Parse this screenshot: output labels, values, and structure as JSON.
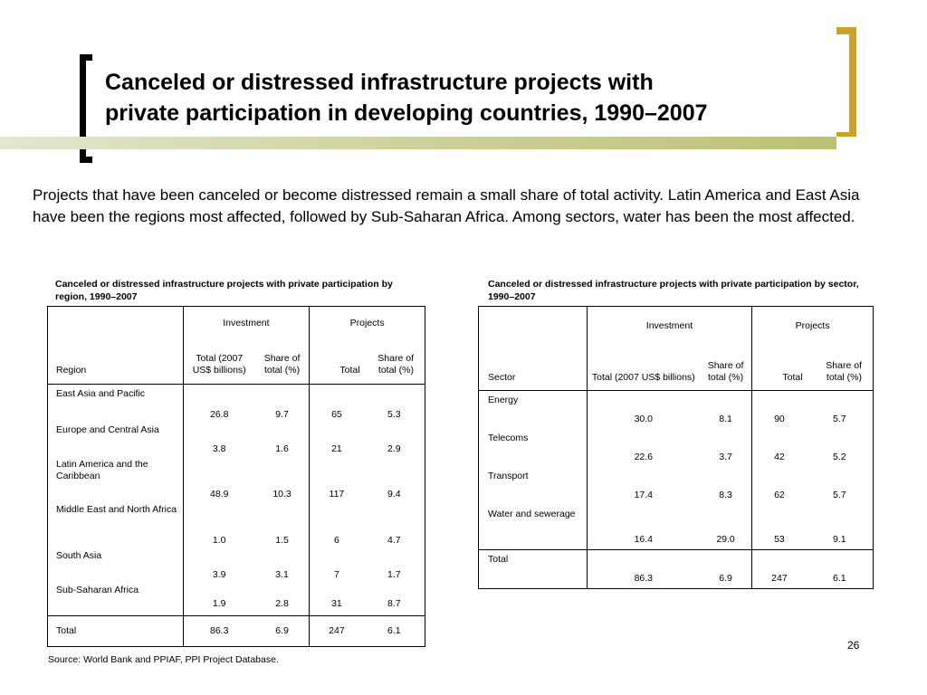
{
  "title_line1": "Canceled or distressed infrastructure projects with",
  "title_line2": "private participation in developing countries, 1990–2007",
  "intro": "Projects that have been canceled or become distressed remain a small share of total activity. Latin America and East Asia have been the regions most affected, followed by Sub-Saharan Africa. Among sectors, water has been the most affected.",
  "region_table": {
    "caption": "Canceled or distressed infrastructure projects with private participation by region, 1990–2007",
    "group_investment": "Investment",
    "group_projects": "Projects",
    "col_label": "Region",
    "col_inv_total": "Total (2007 US$ billions)",
    "col_inv_share": "Share of total (%)",
    "col_proj_total": "Total",
    "col_proj_share": "Share of total (%)",
    "rows": [
      {
        "name": "East Asia and Pacific",
        "inv_total": "26.8",
        "inv_share": "9.7",
        "proj_total": "65",
        "proj_share": "5.3"
      },
      {
        "name": "Europe and Central Asia",
        "inv_total": "3.8",
        "inv_share": "1.6",
        "proj_total": "21",
        "proj_share": "2.9"
      },
      {
        "name": "Latin America and the Caribbean",
        "inv_total": "48.9",
        "inv_share": "10.3",
        "proj_total": "117",
        "proj_share": "9.4"
      },
      {
        "name": "Middle East and North Africa",
        "inv_total": "1.0",
        "inv_share": "1.5",
        "proj_total": "6",
        "proj_share": "4.7"
      },
      {
        "name": "South Asia",
        "inv_total": "3.9",
        "inv_share": "3.1",
        "proj_total": "7",
        "proj_share": "1.7"
      },
      {
        "name": "Sub-Saharan Africa",
        "inv_total": "1.9",
        "inv_share": "2.8",
        "proj_total": "31",
        "proj_share": "8.7"
      }
    ],
    "total": {
      "name": "Total",
      "inv_total": "86.3",
      "inv_share": "6.9",
      "proj_total": "247",
      "proj_share": "6.1"
    }
  },
  "sector_table": {
    "caption": "Canceled or distressed infrastructure projects with private participation by sector, 1990–2007",
    "group_investment": "Investment",
    "group_projects": "Projects",
    "col_label": "Sector",
    "col_inv_total": "Total (2007 US$ billions)",
    "col_inv_share": "Share of total (%)",
    "col_proj_total": "Total",
    "col_proj_share": "Share of total (%)",
    "rows": [
      {
        "name": "Energy",
        "inv_total": "30.0",
        "inv_share": "8.1",
        "proj_total": "90",
        "proj_share": "5.7"
      },
      {
        "name": "Telecoms",
        "inv_total": "22.6",
        "inv_share": "3.7",
        "proj_total": "42",
        "proj_share": "5.2"
      },
      {
        "name": "Transport",
        "inv_total": "17.4",
        "inv_share": "8.3",
        "proj_total": "62",
        "proj_share": "5.7"
      },
      {
        "name": "Water and sewerage",
        "inv_total": "16.4",
        "inv_share": "29.0",
        "proj_total": "53",
        "proj_share": "9.1"
      }
    ],
    "total": {
      "name": "Total",
      "inv_total": "86.3",
      "inv_share": "6.9",
      "proj_total": "247",
      "proj_share": "6.1"
    }
  },
  "source": "Source: World Bank and PPIAF, PPI Project Database.",
  "page_number": "26",
  "colors": {
    "accent_gold": "#c9a227",
    "stripe": "#cdd29a"
  }
}
